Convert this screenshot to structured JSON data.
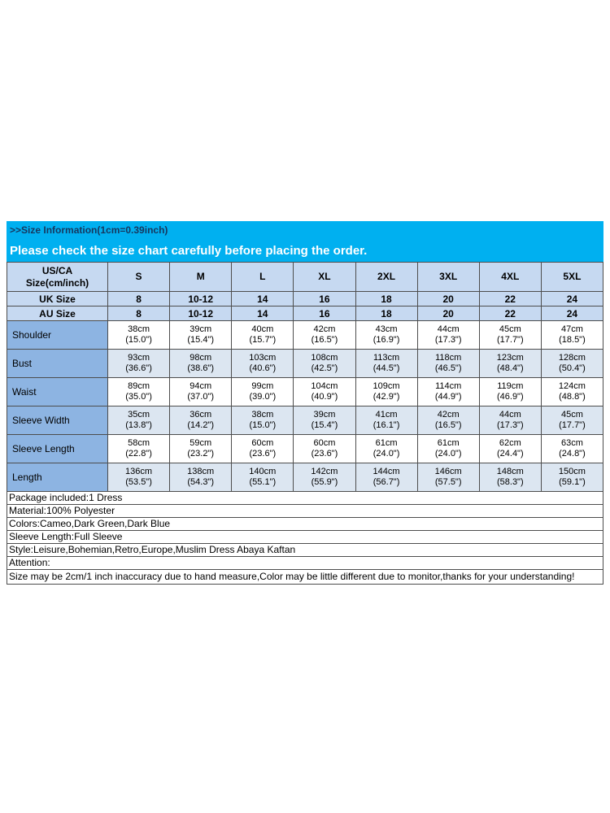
{
  "header": {
    "size_info": ">>Size Information(1cm=0.39inch)",
    "check_notice": "Please check the size chart carefully before placing the order."
  },
  "table": {
    "corner_label": "US/CA\nSize(cm/inch)",
    "sizes": [
      "S",
      "M",
      "L",
      "XL",
      "2XL",
      "3XL",
      "4XL",
      "5XL"
    ],
    "uk": {
      "label": "UK Size",
      "values": [
        "8",
        "10-12",
        "14",
        "16",
        "18",
        "20",
        "22",
        "24"
      ]
    },
    "au": {
      "label": "AU Size",
      "values": [
        "8",
        "10-12",
        "14",
        "16",
        "18",
        "20",
        "22",
        "24"
      ]
    },
    "rows": [
      {
        "label": "Shoulder",
        "values": [
          "38cm\n(15.0\")",
          "39cm\n(15.4\")",
          "40cm\n(15.7\")",
          "42cm\n(16.5\")",
          "43cm\n(16.9\")",
          "44cm\n(17.3\")",
          "45cm\n(17.7\")",
          "47cm\n(18.5\")"
        ]
      },
      {
        "label": "Bust",
        "values": [
          "93cm\n(36.6\")",
          "98cm\n(38.6\")",
          "103cm\n(40.6\")",
          "108cm\n(42.5\")",
          "113cm\n(44.5\")",
          "118cm\n(46.5\")",
          "123cm\n(48.4\")",
          "128cm\n(50.4\")"
        ]
      },
      {
        "label": "Waist",
        "values": [
          "89cm\n(35.0\")",
          "94cm\n(37.0\")",
          "99cm\n(39.0\")",
          "104cm\n(40.9\")",
          "109cm\n(42.9\")",
          "114cm\n(44.9\")",
          "119cm\n(46.9\")",
          "124cm\n(48.8\")"
        ]
      },
      {
        "label": "Sleeve Width",
        "values": [
          "35cm\n(13.8\")",
          "36cm\n(14.2\")",
          "38cm\n(15.0\")",
          "39cm\n(15.4\")",
          "41cm\n(16.1\")",
          "42cm\n(16.5\")",
          "44cm\n(17.3\")",
          "45cm\n(17.7\")"
        ]
      },
      {
        "label": "Sleeve Length",
        "values": [
          "58cm\n(22.8\")",
          "59cm\n(23.2\")",
          "60cm\n(23.6\")",
          "60cm\n(23.6\")",
          "61cm\n(24.0\")",
          "61cm\n(24.0\")",
          "62cm\n(24.4\")",
          "63cm\n(24.8\")"
        ]
      },
      {
        "label": "Length",
        "values": [
          "136cm\n(53.5\")",
          "138cm\n(54.3\")",
          "140cm\n(55.1\")",
          "142cm\n(55.9\")",
          "144cm\n(56.7\")",
          "146cm\n(57.5\")",
          "148cm\n(58.3\")",
          "150cm\n(59.1\")"
        ]
      }
    ]
  },
  "details": {
    "lines": [
      "Package included:1 Dress",
      "Material:100% Polyester",
      "Colors:Cameo,Dark Green,Dark Blue",
      "Sleeve Length:Full Sleeve",
      "Style:Leisure,Bohemian,Retro,Europe,Muslim Dress Abaya Kaftan",
      "Attention:",
      "Size may be 2cm/1 inch inaccuracy due to hand measure,Color may be little different due to monitor,thanks for your understanding!"
    ]
  },
  "colors": {
    "banner_cyan": "#00B0F0",
    "banner_title_text": "#17375E",
    "header_blue": "#C6D9F1",
    "label_column_blue": "#8DB4E2",
    "alt_row_blue": "#DCE6F1",
    "grid_line": "#4d4d4d"
  }
}
